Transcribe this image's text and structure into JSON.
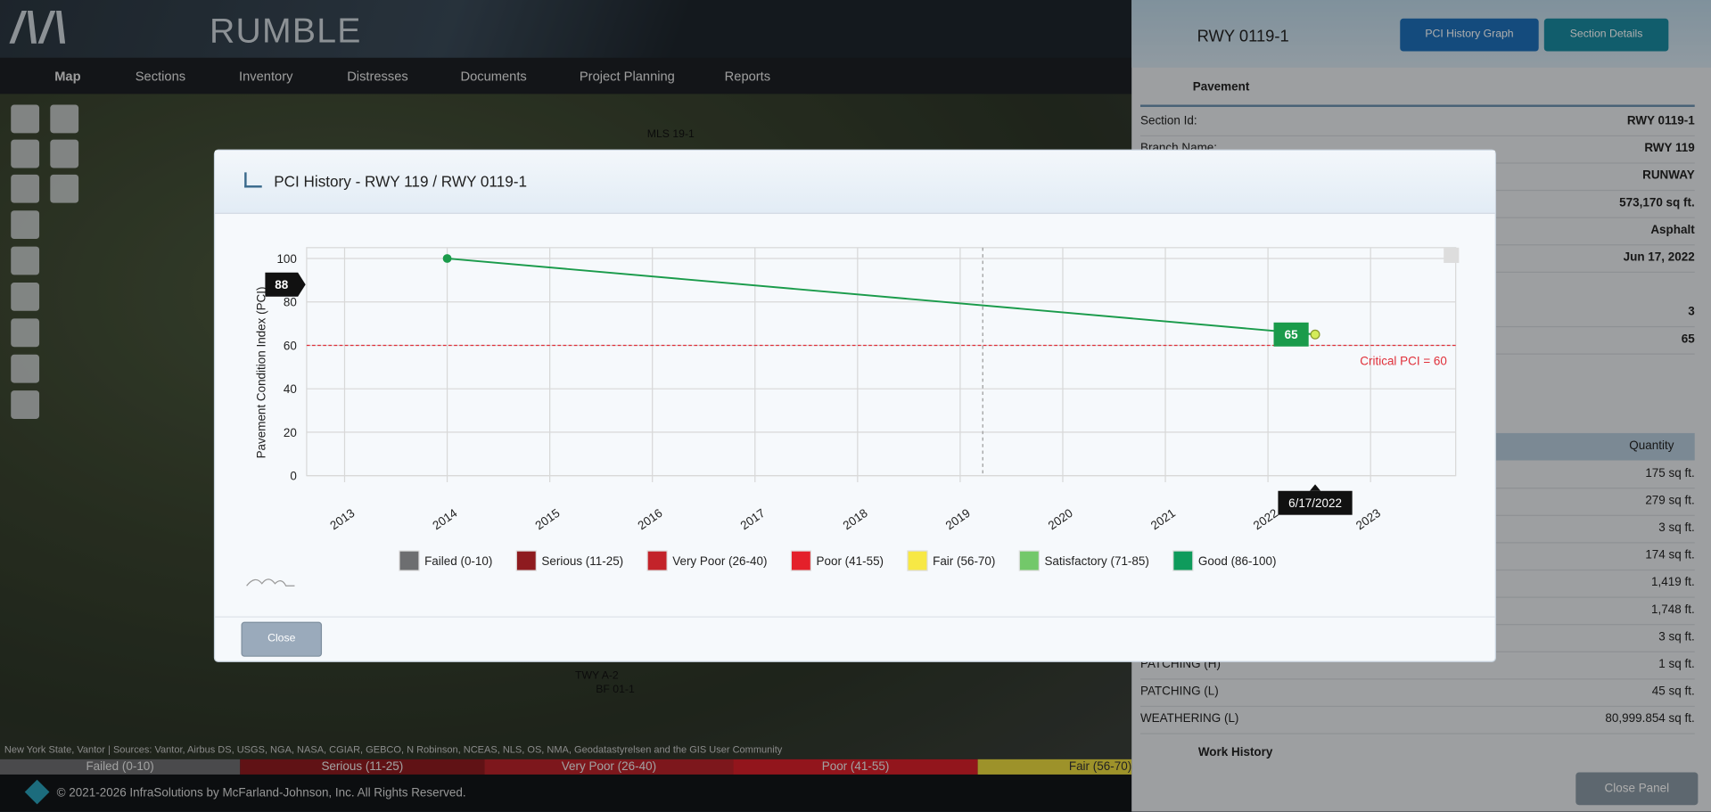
{
  "header": {
    "brand": "RUMBLE"
  },
  "nav": [
    "Map",
    "Sections",
    "Inventory",
    "Distresses",
    "Documents",
    "Project Planning",
    "Reports"
  ],
  "map": {
    "labels": [
      "MLS 19-1",
      "TWY A-2",
      "BF 01-1"
    ],
    "attribution": "New York State, Vantor | Sources: Vantor, Airbus DS, USGS, NGA, NASA, CGIAR, GEBCO, N Robinson, NCEAS, NLS, OS, NMA, Geodatastyrelsen and the GIS User Community"
  },
  "legend_bar": [
    "Failed (0-10)",
    "Serious (11-25)",
    "Very Poor (26-40)",
    "Poor (41-55)",
    "Fair (56-70)"
  ],
  "footer": "© 2021-2026 InfraSolutions by McFarland-Johnson, Inc. All Rights Reserved.",
  "panel": {
    "title": "RWY 0119-1",
    "buttons": [
      "PCI History Graph",
      "Section Details"
    ],
    "section": "Pavement",
    "fields": [
      {
        "label": "Section Id:",
        "value": "RWY 0119-1"
      },
      {
        "label": "Branch Name:",
        "value": "RWY 119"
      },
      {
        "value": "RUNWAY"
      },
      {
        "value": "573,170 sq ft."
      },
      {
        "value": "Asphalt"
      },
      {
        "value": "Jun 17, 2022"
      },
      {
        "value": "3"
      },
      {
        "value": "65"
      }
    ],
    "table_header": "Quantity",
    "distresses": [
      {
        "quantity": "175 sq ft."
      },
      {
        "quantity": "279 sq ft."
      },
      {
        "quantity": "3 sq ft."
      },
      {
        "quantity": "174 sq ft."
      },
      {
        "quantity": "1,419 ft."
      },
      {
        "quantity": "1,748 ft."
      },
      {
        "quantity": "3 sq ft."
      },
      {
        "name": "PATCHING (H)",
        "quantity": "1 sq ft."
      },
      {
        "name": "PATCHING (L)",
        "quantity": "45 sq ft."
      },
      {
        "name": "WEATHERING (L)",
        "quantity": "80,999.854 sq ft."
      }
    ],
    "work_history": "Work History",
    "close": "Close Panel"
  },
  "modal": {
    "title": "PCI History - RWY 119 / RWY 0119-1",
    "close": "Close"
  },
  "chart_data": {
    "type": "line",
    "ylabel": "Pavement Condition Index (PCI)",
    "x": [
      2014,
      2022.46
    ],
    "values": [
      100,
      65
    ],
    "color": "#1a9b4b",
    "date_label": "6/17/2022",
    "xlim": [
      2012.63,
      2023.83
    ],
    "xticks": [
      2013,
      2014,
      2015,
      2016,
      2017,
      2018,
      2019,
      2020,
      2021,
      2022,
      2023
    ],
    "ylim": [
      0,
      105
    ],
    "yticks": [
      0,
      20,
      40,
      60,
      80,
      100
    ],
    "grid": true,
    "critical": {
      "value": 60,
      "label": "Critical PCI = 60",
      "color": "#e0303a"
    },
    "crosshair": {
      "x": 2019.22,
      "y": 88
    },
    "legend": [
      {
        "label": "Failed (0-10)",
        "color": "#6d6e70"
      },
      {
        "label": "Serious (11-25)",
        "color": "#8e1b1f"
      },
      {
        "label": "Very Poor (26-40)",
        "color": "#c3232a"
      },
      {
        "label": "Poor (41-55)",
        "color": "#e4202a"
      },
      {
        "label": "Fair (56-70)",
        "color": "#f7e845"
      },
      {
        "label": "Satisfactory (71-85)",
        "color": "#73c86a"
      },
      {
        "label": "Good (86-100)",
        "color": "#0f9b5c"
      }
    ]
  }
}
